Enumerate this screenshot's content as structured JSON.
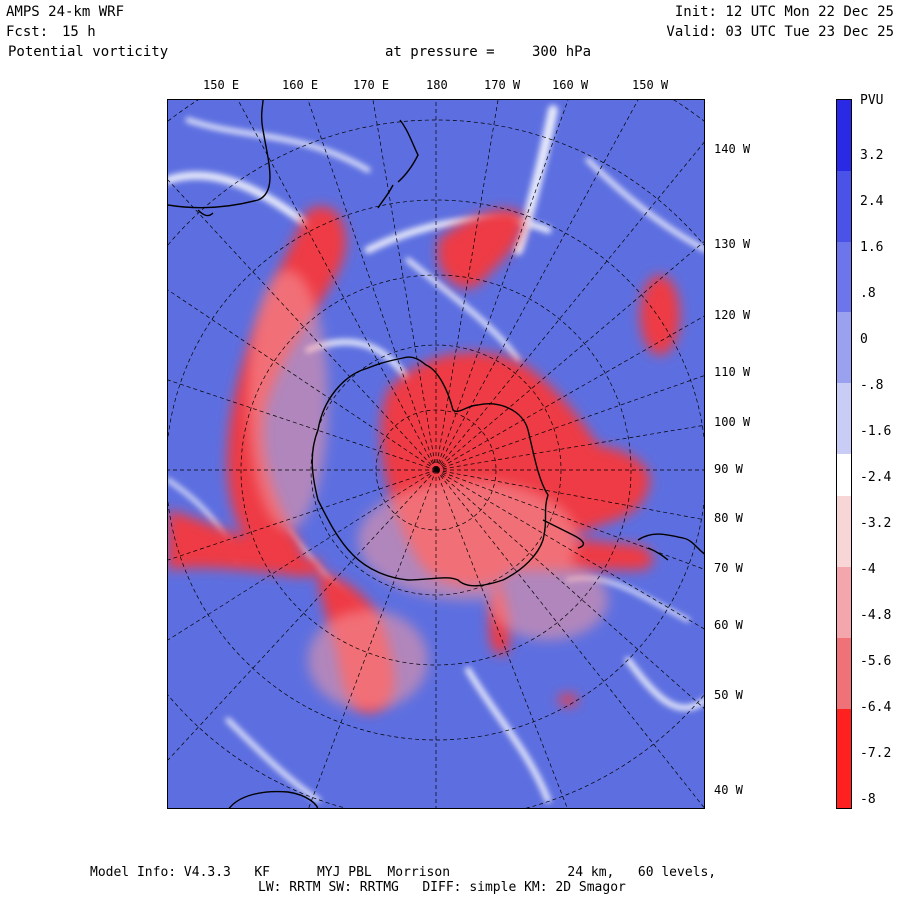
{
  "header": {
    "model": "AMPS 24-km WRF",
    "forecast_label": "Fcst:",
    "forecast_value": "15 h",
    "field": "Potential vorticity",
    "pressure_label": "at pressure =",
    "pressure_value": "300 hPa",
    "init": "Init: 12 UTC Mon 22 Dec 25",
    "valid": "Valid: 03 UTC Tue 23 Dec 25"
  },
  "top_longitudes": [
    "150 E",
    "160 E",
    "170 E",
    "180",
    "170 W",
    "160 W",
    "150 W"
  ],
  "right_longitudes": [
    "140 W",
    "130 W",
    "120 W",
    "110 W",
    "100 W",
    "90 W",
    "80 W",
    "70 W",
    "60 W",
    "50 W",
    "40 W"
  ],
  "colorbar": {
    "unit": "PVU",
    "ticks": [
      "3.2",
      "2.4",
      "1.6",
      ".8",
      "0",
      "-.8",
      "-1.6",
      "-2.4",
      "-3.2",
      "-4",
      "-4.8",
      "-5.6",
      "-6.4",
      "-7.2",
      "-8"
    ],
    "range": [
      -8,
      4
    ]
  },
  "footer": {
    "line1": "Model Info: V4.3.3   KF      MYJ PBL  Morrison               24 km,   60 levels,",
    "line2": "LW: RRTM SW: RRTMG   DIFF: simple KM: 2D Smagor"
  },
  "colors": {
    "positive": "#2020e0",
    "negative": "#ff0000",
    "neutral": "#ffffff",
    "ocean": "#5d6fe0"
  }
}
